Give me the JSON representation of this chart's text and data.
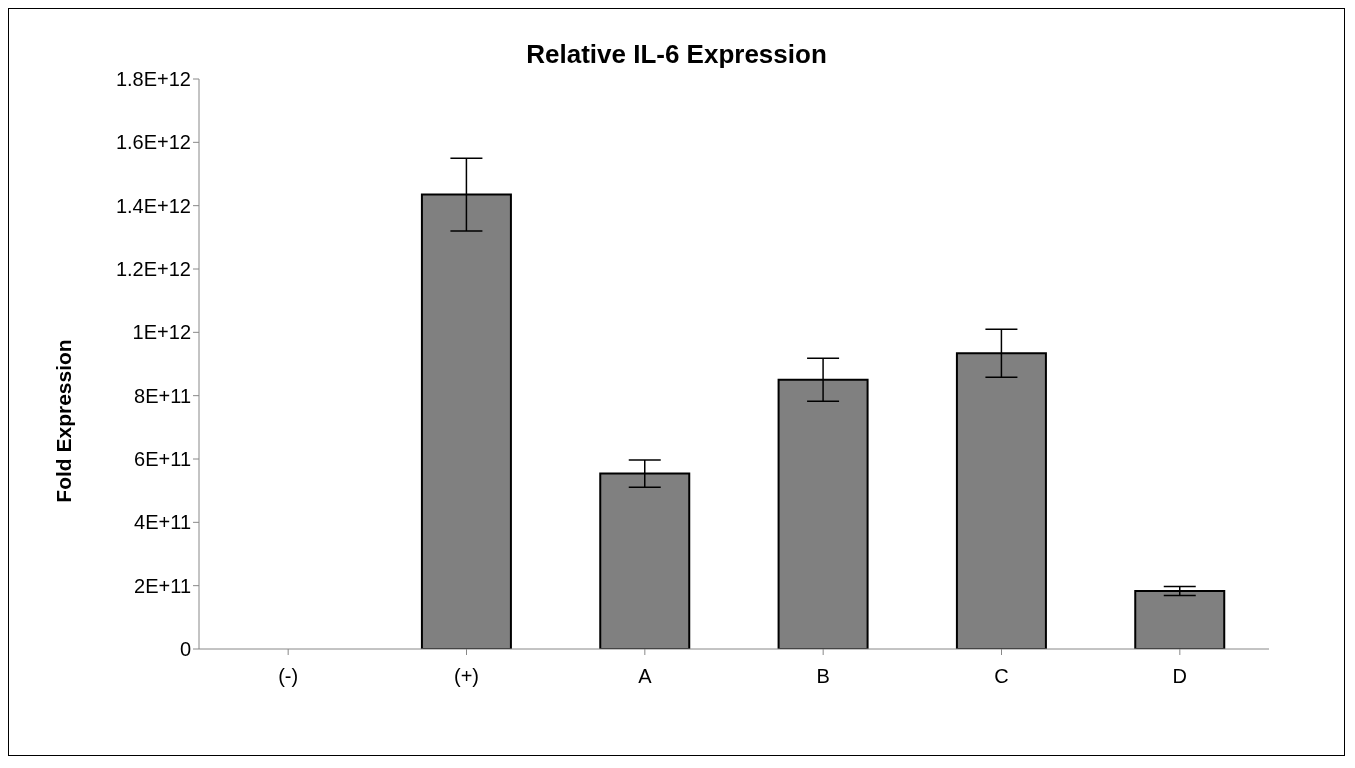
{
  "chart_data": {
    "type": "bar",
    "title": "Relative IL-6 Expression",
    "ylabel": "Fold Expression",
    "categories": [
      "(-)",
      "(+)",
      "A",
      "B",
      "C",
      "D"
    ],
    "values": [
      0,
      1435000000000.0,
      554000000000.0,
      850000000000.0,
      934000000000.0,
      183000000000.0
    ],
    "errors": [
      null,
      115000000000.0,
      43000000000.0,
      68000000000.0,
      76000000000.0,
      14000000000.0
    ],
    "color": "#808080",
    "ylim": [
      0,
      1800000000000.0
    ],
    "yticks": [
      0,
      {
        "value": 200000000000.0,
        "label": "2E+11"
      },
      {
        "value": 400000000000.0,
        "label": "4E+11"
      },
      {
        "value": 600000000000.0,
        "label": "6E+11"
      },
      {
        "value": 800000000000.0,
        "label": "8E+11"
      },
      {
        "value": 1000000000000.0,
        "label": "1E+12"
      },
      {
        "value": 1200000000000.0,
        "label": "1.2E+12"
      },
      {
        "value": 1400000000000.0,
        "label": "1.4E+12"
      },
      {
        "value": 1600000000000.0,
        "label": "1.6E+12"
      },
      {
        "value": 1800000000000.0,
        "label": "1.8E+12"
      }
    ],
    "grid": false,
    "legend": false
  }
}
